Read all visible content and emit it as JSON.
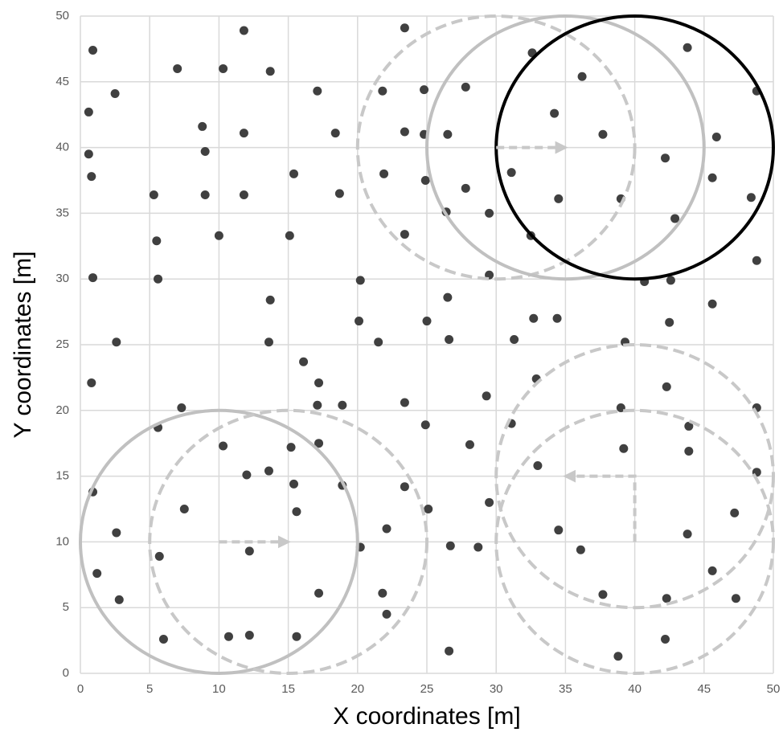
{
  "chart_data": {
    "type": "scatter",
    "x_label": "X coordinates [m]",
    "y_label": "Y coordinates [m]",
    "x": [
      0.9,
      0.6,
      0.6,
      0.8,
      0.9,
      2.6,
      0.8,
      0.9,
      2.6,
      1.2,
      2.8,
      2.5,
      7.0,
      5.3,
      5.5,
      5.6,
      8.8,
      9.0,
      9.0,
      10.0,
      11.8,
      10.3,
      11.8,
      11.8,
      13.7,
      15.4,
      15.1,
      13.7,
      13.6,
      16.1,
      17.1,
      18.4,
      18.7,
      17.2,
      17.1,
      18.9,
      7.3,
      5.6,
      7.5,
      5.7,
      6.0,
      10.3,
      12.0,
      13.6,
      15.2,
      17.2,
      15.4,
      15.6,
      18.9,
      12.2,
      17.2,
      10.7,
      12.2,
      15.6,
      23.4,
      21.8,
      24.8,
      23.4,
      24.8,
      21.9,
      24.9,
      23.4,
      20.2,
      20.1,
      21.5,
      25.0,
      23.4,
      24.9,
      23.4,
      25.1,
      22.1,
      20.2,
      21.8,
      22.1,
      26.6,
      26.7,
      28.7,
      27.8,
      26.5,
      27.8,
      26.4,
      29.5,
      29.5,
      26.5,
      26.6,
      29.3,
      28.1,
      29.5,
      32.6,
      36.2,
      34.2,
      37.7,
      31.1,
      34.5,
      32.5,
      31.3,
      32.7,
      34.4,
      32.9,
      31.1,
      33.0,
      34.5,
      36.1,
      37.7,
      38.8,
      39.0,
      39.3,
      39.0,
      39.2,
      40.7,
      42.6,
      42.2,
      42.9,
      42.5,
      42.3,
      43.8,
      45.9,
      45.6,
      45.6,
      43.9,
      43.9,
      43.8,
      45.6,
      47.2,
      47.3,
      42.3,
      42.2,
      48.8,
      48.4,
      48.8,
      48.8,
      48.8
    ],
    "series": [
      {
        "color": "#404040",
        "values": [
          47.4,
          42.7,
          39.5,
          37.8,
          30.1,
          25.2,
          22.1,
          13.8,
          10.7,
          7.6,
          5.6,
          44.1,
          46.0,
          36.4,
          32.9,
          30.0,
          41.6,
          39.7,
          36.4,
          33.3,
          48.9,
          46.0,
          41.1,
          36.4,
          45.8,
          38.0,
          33.3,
          28.4,
          25.2,
          23.7,
          44.3,
          41.1,
          36.5,
          22.1,
          20.4,
          20.4,
          20.2,
          18.7,
          12.5,
          8.9,
          2.6,
          17.3,
          15.1,
          15.4,
          17.2,
          17.5,
          14.4,
          12.3,
          14.3,
          9.3,
          6.1,
          2.8,
          2.9,
          2.8,
          49.1,
          44.3,
          44.4,
          41.2,
          41.0,
          38.0,
          37.5,
          33.4,
          29.9,
          26.8,
          25.2,
          26.8,
          20.6,
          18.9,
          14.2,
          12.5,
          11.0,
          9.6,
          6.1,
          4.5,
          1.7,
          9.7,
          9.6,
          44.6,
          41.0,
          36.9,
          35.1,
          35.0,
          30.3,
          28.6,
          25.4,
          21.1,
          17.4,
          13.0,
          47.2,
          45.4,
          42.6,
          41.0,
          38.1,
          36.1,
          33.3,
          25.4,
          27.0,
          27.0,
          22.4,
          19.0,
          15.8,
          10.9,
          9.4,
          6.0,
          1.3,
          36.1,
          25.2,
          20.2,
          17.1,
          29.8,
          29.9,
          39.2,
          34.6,
          26.7,
          21.8,
          47.6,
          40.8,
          37.7,
          28.1,
          18.8,
          16.9,
          10.6,
          7.8,
          12.2,
          5.7,
          5.7,
          2.6,
          44.3,
          36.2,
          31.4,
          20.2,
          15.3
        ]
      }
    ],
    "circles": [
      {
        "center": [
          30,
          40
        ],
        "radius": 10,
        "color": "#c8c8c8",
        "dashed": true
      },
      {
        "center": [
          35,
          40
        ],
        "radius": 10,
        "color": "#c0c0c0",
        "dashed": false
      },
      {
        "center": [
          40,
          40
        ],
        "radius": 10,
        "color": "#000000",
        "dashed": false
      },
      {
        "center": [
          10,
          10
        ],
        "radius": 10,
        "color": "#c0c0c0",
        "dashed": false
      },
      {
        "center": [
          15,
          10
        ],
        "radius": 10,
        "color": "#c8c8c8",
        "dashed": true
      },
      {
        "center": [
          40,
          15
        ],
        "radius": 10,
        "color": "#c8c8c8",
        "dashed": true
      },
      {
        "center": [
          40,
          10
        ],
        "radius": 10,
        "color": "#c8c8c8",
        "dashed": true
      }
    ],
    "arrows": [
      {
        "x": [
          30,
          35
        ],
        "y": [
          40,
          40
        ]
      },
      {
        "x": [
          10,
          15
        ],
        "y": [
          10,
          10
        ]
      },
      {
        "x": [
          40,
          40,
          35
        ],
        "y": [
          10,
          15,
          15
        ]
      }
    ],
    "arrow_color": "#c8c8c8",
    "xlim": [
      0,
      50
    ],
    "ylim": [
      0,
      50
    ],
    "xticks": [
      0,
      5,
      10,
      15,
      20,
      25,
      30,
      35,
      40,
      45,
      50
    ],
    "yticks": [
      0,
      5,
      10,
      15,
      20,
      25,
      30,
      35,
      40,
      45,
      50
    ],
    "grid": true
  }
}
